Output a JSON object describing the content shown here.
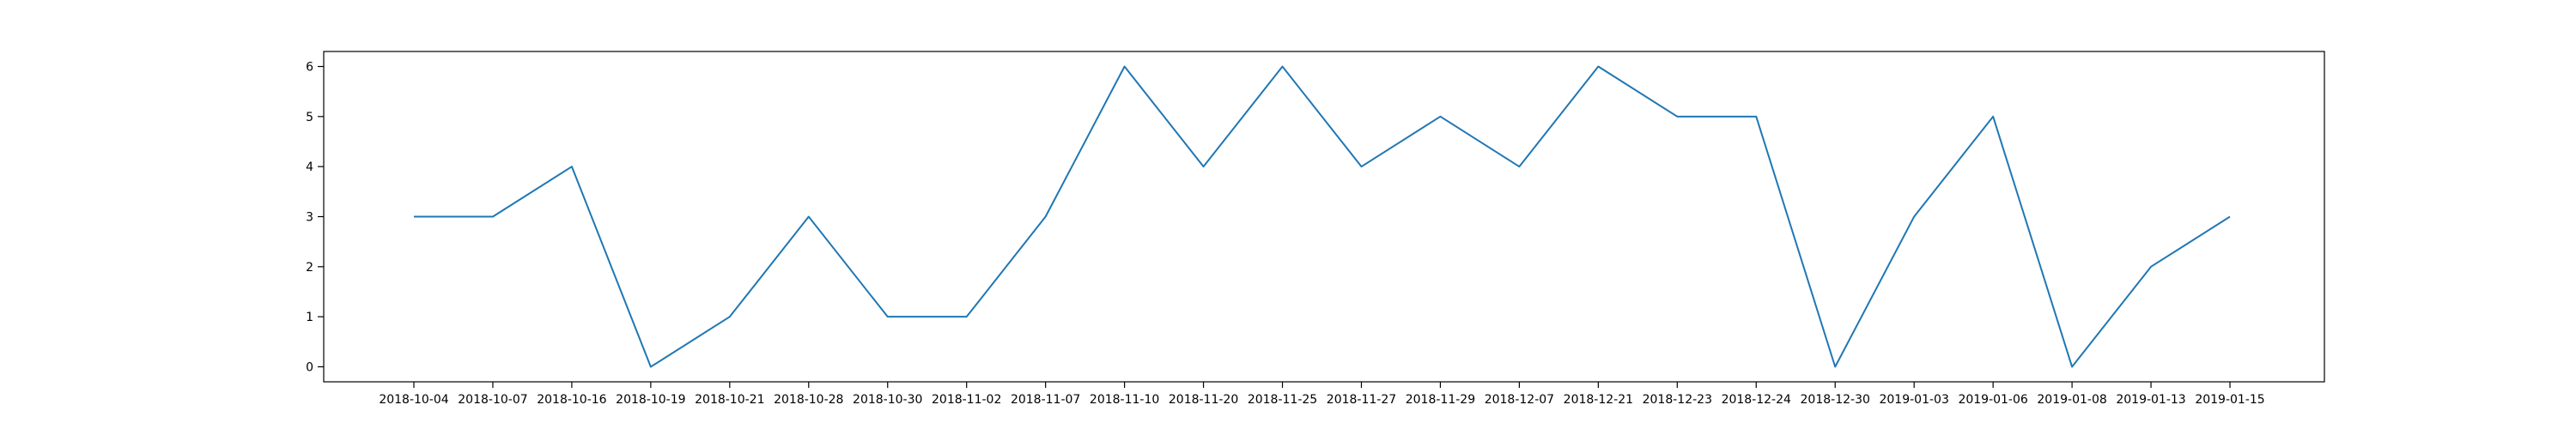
{
  "chart_data": {
    "type": "line",
    "title": "",
    "xlabel": "",
    "ylabel": "",
    "categories": [
      "2018-10-04",
      "2018-10-07",
      "2018-10-16",
      "2018-10-19",
      "2018-10-21",
      "2018-10-28",
      "2018-10-30",
      "2018-11-02",
      "2018-11-07",
      "2018-11-10",
      "2018-11-20",
      "2018-11-25",
      "2018-11-27",
      "2018-11-29",
      "2018-12-07",
      "2018-12-21",
      "2018-12-23",
      "2018-12-24",
      "2018-12-30",
      "2019-01-03",
      "2019-01-06",
      "2019-01-08",
      "2019-01-13",
      "2019-01-15"
    ],
    "series": [
      {
        "values": [
          3,
          3,
          4,
          0,
          1,
          3,
          1,
          1,
          3,
          6,
          4,
          6,
          4,
          5,
          4,
          6,
          5,
          5,
          0,
          3,
          5,
          0,
          2,
          3
        ],
        "color": "#1f77b4"
      }
    ],
    "yticks": [
      0,
      1,
      2,
      3,
      4,
      5,
      6
    ],
    "ylim": [
      -0.3,
      6.3
    ],
    "grid": false,
    "legend": "none"
  }
}
